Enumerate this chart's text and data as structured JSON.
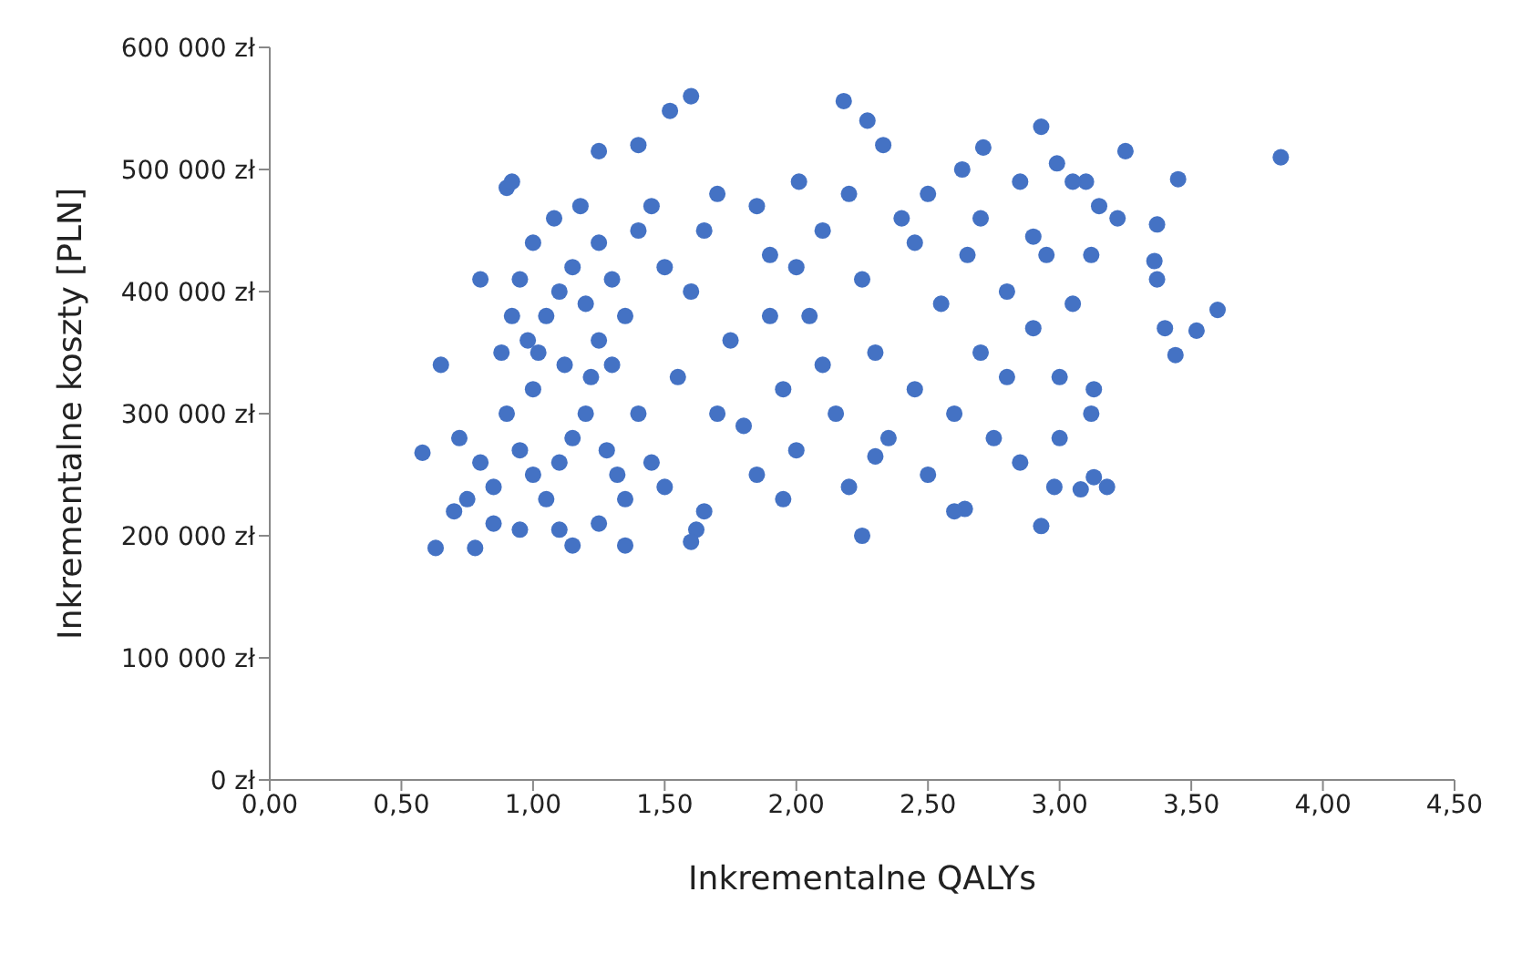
{
  "chart_data": {
    "type": "scatter",
    "xlabel": "Inkrementalne QALYs",
    "ylabel": "Inkrementalne koszty [PLN]",
    "xlim": [
      0,
      4.5
    ],
    "xticks": [
      {
        "value": 0,
        "label": "0,00"
      },
      {
        "value": 0.5,
        "label": "0,50"
      },
      {
        "value": 1,
        "label": "1,00"
      },
      {
        "value": 1.5,
        "label": "1,50"
      },
      {
        "value": 2,
        "label": "2,00"
      },
      {
        "value": 2.5,
        "label": "2,50"
      },
      {
        "value": 3,
        "label": "3,00"
      },
      {
        "value": 3.5,
        "label": "3,50"
      },
      {
        "value": 4,
        "label": "4,00"
      },
      {
        "value": 4.5,
        "label": "4,50"
      }
    ],
    "ylim": [
      0,
      600000
    ],
    "yticks": [
      {
        "value": 0,
        "label": "0 zł"
      },
      {
        "value": 100000,
        "label": "100 000 zł"
      },
      {
        "value": 200000,
        "label": "200 000 zł"
      },
      {
        "value": 300000,
        "label": "300 000 zł"
      },
      {
        "value": 400000,
        "label": "400 000 zł"
      },
      {
        "value": 500000,
        "label": "500 000 zł"
      },
      {
        "value": 600000,
        "label": "600 000 zł"
      }
    ],
    "grid": false,
    "legend": false,
    "marker": "circle",
    "series": [
      {
        "color": "#4472c4",
        "x": [
          3.84,
          3.6,
          3.52,
          3.45,
          3.44,
          3.4,
          3.37,
          3.37,
          3.36,
          3.25,
          3.22,
          3.18,
          3.13,
          3.08,
          2.98,
          3.13,
          3.12,
          3.12,
          3.15,
          3.1,
          3.05,
          2.93,
          2.93,
          2.99,
          2.9,
          2.95,
          2.85,
          2.8,
          2.71,
          2.64,
          2.63,
          2.25,
          2.18,
          2.27,
          2.33,
          2.01,
          1.6,
          1.52,
          1.4,
          1.25,
          0.9,
          0.92,
          0.58,
          0.63,
          0.7,
          0.78,
          1.15,
          1.35,
          1.62,
          1.6,
          0.65,
          0.8,
          1.0,
          1.05,
          0.95,
          1.1,
          0.9,
          1.0,
          1.05,
          1.1,
          1.15,
          1.0,
          0.95,
          1.2,
          1.25,
          1.3,
          1.2,
          1.15,
          0.85,
          0.8,
          0.75,
          0.72,
          0.88,
          0.92,
          1.08,
          1.18,
          1.25,
          1.3,
          1.35,
          1.4,
          1.45,
          1.5,
          1.55,
          1.6,
          1.65,
          1.7,
          1.75,
          1.8,
          1.85,
          1.9,
          1.95,
          2.0,
          2.05,
          2.1,
          2.15,
          2.2,
          2.25,
          2.3,
          2.35,
          2.4,
          2.45,
          2.5,
          2.55,
          2.6,
          2.65,
          2.7,
          2.75,
          2.8,
          2.85,
          2.9,
          3.0,
          3.05,
          3.0,
          1.65,
          1.7,
          1.5,
          1.45,
          1.4,
          1.35,
          1.25,
          1.1,
          0.95,
          0.85,
          1.02,
          1.12,
          0.98,
          1.22,
          1.28,
          1.32,
          2.0,
          2.2,
          2.5,
          2.45,
          2.1,
          1.9,
          1.85,
          1.95,
          2.3,
          2.7,
          2.6
        ],
        "values": [
          510000,
          385000,
          368000,
          492000,
          348000,
          370000,
          455000,
          410000,
          425000,
          515000,
          460000,
          240000,
          248000,
          238000,
          240000,
          320000,
          300000,
          430000,
          470000,
          490000,
          490000,
          535000,
          208000,
          505000,
          445000,
          430000,
          490000,
          330000,
          518000,
          222000,
          500000,
          200000,
          556000,
          540000,
          520000,
          490000,
          560000,
          548000,
          520000,
          515000,
          485000,
          490000,
          268000,
          190000,
          220000,
          190000,
          192000,
          192000,
          205000,
          195000,
          340000,
          410000,
          250000,
          230000,
          270000,
          260000,
          300000,
          320000,
          380000,
          400000,
          420000,
          440000,
          410000,
          390000,
          360000,
          340000,
          300000,
          280000,
          240000,
          260000,
          230000,
          280000,
          350000,
          380000,
          460000,
          470000,
          440000,
          410000,
          380000,
          300000,
          260000,
          240000,
          330000,
          400000,
          450000,
          480000,
          360000,
          290000,
          250000,
          430000,
          320000,
          270000,
          380000,
          450000,
          300000,
          240000,
          410000,
          350000,
          280000,
          460000,
          320000,
          250000,
          390000,
          300000,
          430000,
          350000,
          280000,
          400000,
          260000,
          370000,
          330000,
          390000,
          280000,
          220000,
          300000,
          420000,
          470000,
          450000,
          230000,
          210000,
          205000,
          205000,
          210000,
          350000,
          340000,
          360000,
          330000,
          270000,
          250000,
          420000,
          480000,
          480000,
          440000,
          340000,
          380000,
          470000,
          230000,
          265000,
          460000,
          220000
        ]
      }
    ]
  }
}
